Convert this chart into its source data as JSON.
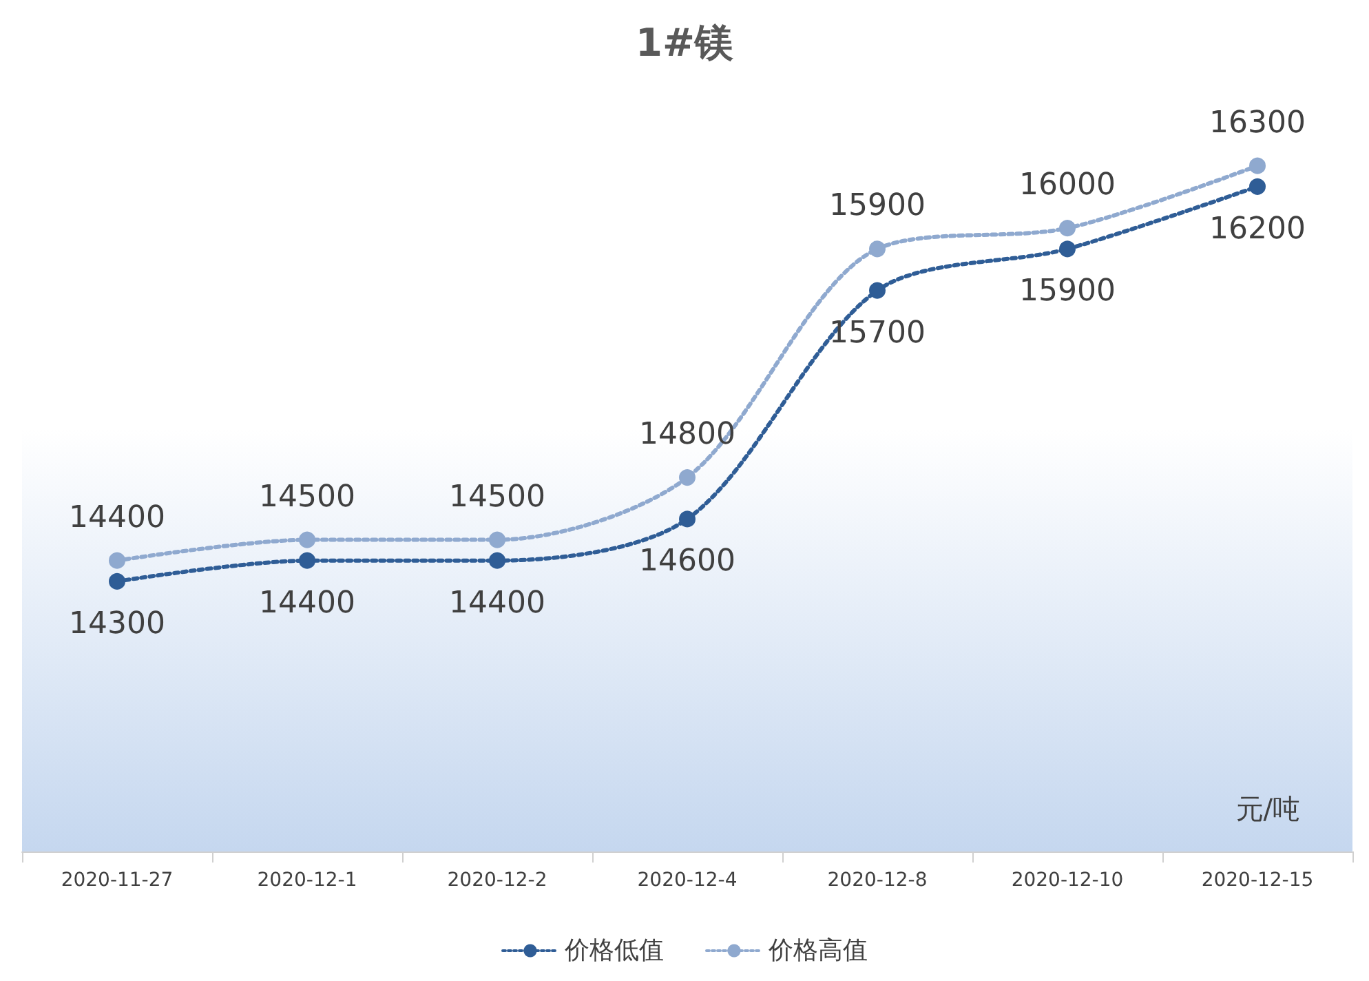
{
  "chart_data": {
    "type": "line",
    "title": "1#镁",
    "ylabel": "元/吨",
    "categories": [
      "2020-11-27",
      "2020-12-1",
      "2020-12-2",
      "2020-12-4",
      "2020-12-8",
      "2020-12-10",
      "2020-12-15"
    ],
    "series": [
      {
        "name": "价格低值",
        "color": "#2f5d96",
        "values": [
          14300,
          14400,
          14400,
          14600,
          15700,
          15900,
          16200
        ]
      },
      {
        "name": "价格高值",
        "color": "#8fa9cf",
        "values": [
          14400,
          14500,
          14500,
          14800,
          15900,
          16000,
          16300
        ]
      }
    ],
    "ylim": [
      13000,
      16700
    ],
    "tick_labels": "x",
    "data_labels": true,
    "legend": "bottom",
    "marker": "circle",
    "line_style": "dotted"
  }
}
